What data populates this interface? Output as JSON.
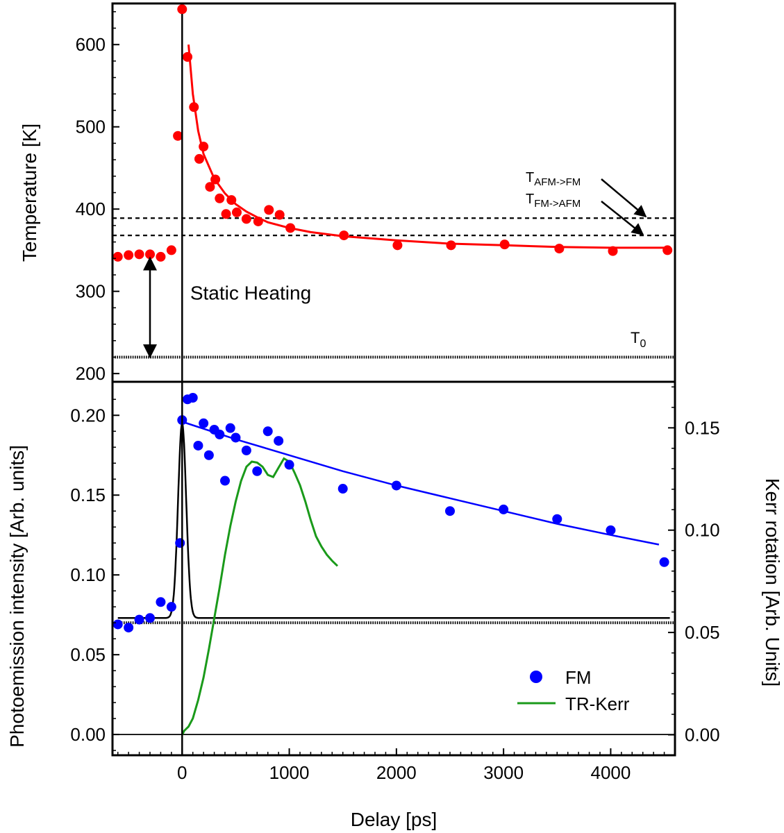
{
  "chart_data": [
    {
      "type": "scatter",
      "panel": "top",
      "ylabel": "Temperature [K]",
      "xlabel": "",
      "xlim": [
        -650,
        4600
      ],
      "ylim": [
        190,
        650
      ],
      "yticks": [
        200,
        300,
        400,
        500,
        600
      ],
      "series": [
        {
          "points": [
            [
              -600,
              342
            ],
            [
              -500,
              344
            ],
            [
              -400,
              345
            ],
            [
              -300,
              345
            ],
            [
              -200,
              342
            ],
            [
              -100,
              350
            ],
            [
              -40,
              489
            ],
            [
              0,
              643
            ],
            [
              50,
              585
            ],
            [
              110,
              524
            ],
            [
              160,
              461
            ],
            [
              200,
              476
            ],
            [
              260,
              427
            ],
            [
              310,
              436
            ],
            [
              350,
              413
            ],
            [
              410,
              394
            ],
            [
              460,
              411
            ],
            [
              510,
              396
            ],
            [
              600,
              388
            ],
            [
              710,
              385
            ],
            [
              810,
              399
            ],
            [
              910,
              393
            ],
            [
              1010,
              377
            ],
            [
              1510,
              368
            ],
            [
              2010,
              356
            ],
            [
              2510,
              356
            ],
            [
              3010,
              357
            ],
            [
              3520,
              352
            ],
            [
              4020,
              349
            ],
            [
              4530,
              350
            ]
          ],
          "color": "#ff0000"
        },
        {
          "fit": [
            [
              60,
              600
            ],
            [
              100,
              540
            ],
            [
              150,
              495
            ],
            [
              200,
              467
            ],
            [
              300,
              437
            ],
            [
              400,
              419
            ],
            [
              500,
              406
            ],
            [
              600,
              397
            ],
            [
              700,
              390
            ],
            [
              800,
              384
            ],
            [
              1000,
              377
            ],
            [
              1200,
              372
            ],
            [
              1500,
              367
            ],
            [
              2000,
              362
            ],
            [
              2500,
              358
            ],
            [
              3000,
              356
            ],
            [
              3500,
              354
            ],
            [
              4000,
              353
            ],
            [
              4500,
              353
            ]
          ],
          "color": "#ff0000"
        }
      ],
      "reference_lines": [
        {
          "y": 389,
          "style": "dashed",
          "label_main": "T",
          "label_sub": "AFM->FM"
        },
        {
          "y": 368,
          "style": "dashed",
          "label_main": "T",
          "label_sub": "FM->AFM"
        },
        {
          "y": 220,
          "style": "dotted",
          "label_main": "T",
          "label_sub": "0"
        }
      ],
      "annotations": [
        {
          "text": "Static Heating",
          "x": 75,
          "y": 300
        },
        {
          "double_arrow": {
            "x": -300,
            "y_from": 222,
            "y_to": 344
          }
        }
      ]
    },
    {
      "type": "scatter",
      "panel": "bottom",
      "xlabel": "Delay [ps]",
      "ylabel": "Photoemission intensity [Arb. units]",
      "y2label": "Kerr rotation [Arb. Units]",
      "xlim": [
        -650,
        4600
      ],
      "ylim": [
        -0.013,
        0.221
      ],
      "y2lim": [
        -0.01,
        0.1725
      ],
      "xticks": [
        0,
        1000,
        2000,
        3000,
        4000
      ],
      "yticks": [
        "0.00",
        "0.05",
        "0.10",
        "0.15",
        "0.20"
      ],
      "y2ticks": [
        "0.00",
        "0.05",
        "0.10",
        "0.15"
      ],
      "legend_position": "bottom-right",
      "series": [
        {
          "name": "FM",
          "axis": "left",
          "color": "#0000ff",
          "points": [
            [
              -600,
              0.069
            ],
            [
              -500,
              0.067
            ],
            [
              -400,
              0.072
            ],
            [
              -300,
              0.073
            ],
            [
              -200,
              0.083
            ],
            [
              -100,
              0.08
            ],
            [
              -20,
              0.12
            ],
            [
              0,
              0.197
            ],
            [
              50,
              0.21
            ],
            [
              100,
              0.211
            ],
            [
              150,
              0.181
            ],
            [
              200,
              0.195
            ],
            [
              250,
              0.175
            ],
            [
              300,
              0.191
            ],
            [
              350,
              0.188
            ],
            [
              400,
              0.159
            ],
            [
              450,
              0.192
            ],
            [
              500,
              0.186
            ],
            [
              600,
              0.178
            ],
            [
              700,
              0.165
            ],
            [
              800,
              0.19
            ],
            [
              900,
              0.184
            ],
            [
              1000,
              0.169
            ],
            [
              1500,
              0.154
            ],
            [
              2000,
              0.156
            ],
            [
              2500,
              0.14
            ],
            [
              3000,
              0.141
            ],
            [
              3500,
              0.135
            ],
            [
              4000,
              0.128
            ],
            [
              4500,
              0.108
            ]
          ]
        },
        {
          "fit": [
            [
              0,
              0.196
            ],
            [
              500,
              0.185
            ],
            [
              1000,
              0.175
            ],
            [
              1500,
              0.165
            ],
            [
              2000,
              0.156
            ],
            [
              2500,
              0.148
            ],
            [
              3000,
              0.14
            ],
            [
              3500,
              0.132
            ],
            [
              4000,
              0.125
            ],
            [
              4450,
              0.119
            ]
          ],
          "axis": "left",
          "color": "#0000ff"
        },
        {
          "name": "TR-Kerr",
          "axis": "right",
          "color": "#1a9a1a",
          "points": [
            [
              0,
              0.0
            ],
            [
              20,
              0.002
            ],
            [
              60,
              0.004
            ],
            [
              100,
              0.008
            ],
            [
              150,
              0.017
            ],
            [
              200,
              0.028
            ],
            [
              250,
              0.042
            ],
            [
              300,
              0.057
            ],
            [
              350,
              0.072
            ],
            [
              400,
              0.088
            ],
            [
              450,
              0.102
            ],
            [
              500,
              0.114
            ],
            [
              550,
              0.124
            ],
            [
              600,
              0.131
            ],
            [
              650,
              0.1335
            ],
            [
              700,
              0.133
            ],
            [
              750,
              0.131
            ],
            [
              800,
              0.127
            ],
            [
              850,
              0.126
            ],
            [
              900,
              0.1305
            ],
            [
              950,
              0.135
            ],
            [
              1000,
              0.1335
            ],
            [
              1050,
              0.128
            ],
            [
              1100,
              0.122
            ],
            [
              1150,
              0.114
            ],
            [
              1200,
              0.105
            ],
            [
              1250,
              0.097
            ],
            [
              1300,
              0.092
            ],
            [
              1350,
              0.088
            ],
            [
              1400,
              0.085
            ],
            [
              1450,
              0.0825
            ]
          ]
        },
        {
          "gaussian": {
            "center": 0,
            "sigma": 38,
            "baseline": 0.073,
            "peak": 0.195
          },
          "axis": "left",
          "color": "#000000"
        }
      ],
      "reference_lines": [
        {
          "y": 0.07,
          "style": "dotted"
        },
        {
          "y": 0.0,
          "style": "solid"
        }
      ],
      "vertical_line": {
        "x": 0
      }
    }
  ]
}
